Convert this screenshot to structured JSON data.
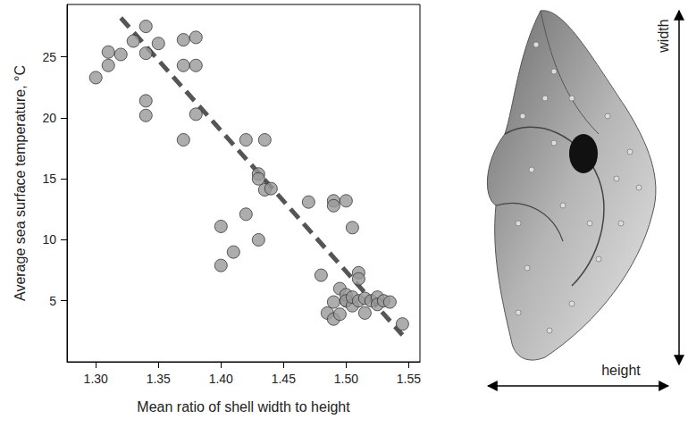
{
  "chart_data": {
    "type": "scatter",
    "x_label": "Mean ratio of shell width to height",
    "y_label": "Average sea surface temperature, °C",
    "xlim": [
      1.277,
      1.559
    ],
    "xticks": [
      {
        "value": 1.3,
        "label": "1.30"
      },
      1.35,
      {
        "value": 1.4,
        "label": "1.40"
      },
      1.45,
      {
        "value": 1.5,
        "label": "1.50"
      },
      1.55
    ],
    "ylim": [
      0,
      29.3
    ],
    "yticks": [
      5,
      10,
      15,
      20,
      25
    ],
    "grid": false,
    "series": [
      {
        "type": "scatter",
        "color": "#999999",
        "marker": "circle",
        "x": [
          1.3,
          1.31,
          1.31,
          1.32,
          1.33,
          1.34,
          1.34,
          1.34,
          1.34,
          1.35,
          1.37,
          1.37,
          1.37,
          1.38,
          1.38,
          1.38,
          1.4,
          1.4,
          1.41,
          1.42,
          1.42,
          1.43,
          1.43,
          1.43,
          1.435,
          1.435,
          1.44,
          1.47,
          1.48,
          1.49,
          1.49,
          1.5,
          1.505,
          1.51,
          1.51,
          1.485,
          1.49,
          1.49,
          1.495,
          1.5,
          1.5,
          1.495,
          1.5,
          1.505,
          1.505,
          1.51,
          1.515,
          1.515,
          1.52,
          1.525,
          1.525,
          1.53,
          1.535,
          1.545
        ],
        "values": [
          23.3,
          24.3,
          25.4,
          25.2,
          26.3,
          27.5,
          25.3,
          21.4,
          20.2,
          26.1,
          26.4,
          24.3,
          18.2,
          26.6,
          24.3,
          20.3,
          11.1,
          7.9,
          9.0,
          18.2,
          12.1,
          15.4,
          10.0,
          15.0,
          14.1,
          18.2,
          14.2,
          13.1,
          7.1,
          13.2,
          12.8,
          13.2,
          11.0,
          7.3,
          6.8,
          4.0,
          4.9,
          3.5,
          6.0,
          5.0,
          5.5,
          3.9,
          5.0,
          4.6,
          5.3,
          5.0,
          5.2,
          4.0,
          5.0,
          5.3,
          4.7,
          5.0,
          4.9,
          3.1
        ]
      },
      {
        "type": "line",
        "color": "#555555",
        "line_style": "dashed",
        "x": [
          1.32,
          1.545
        ],
        "values": [
          28.2,
          2.2
        ]
      }
    ],
    "annotations": [
      "width",
      "height"
    ]
  }
}
